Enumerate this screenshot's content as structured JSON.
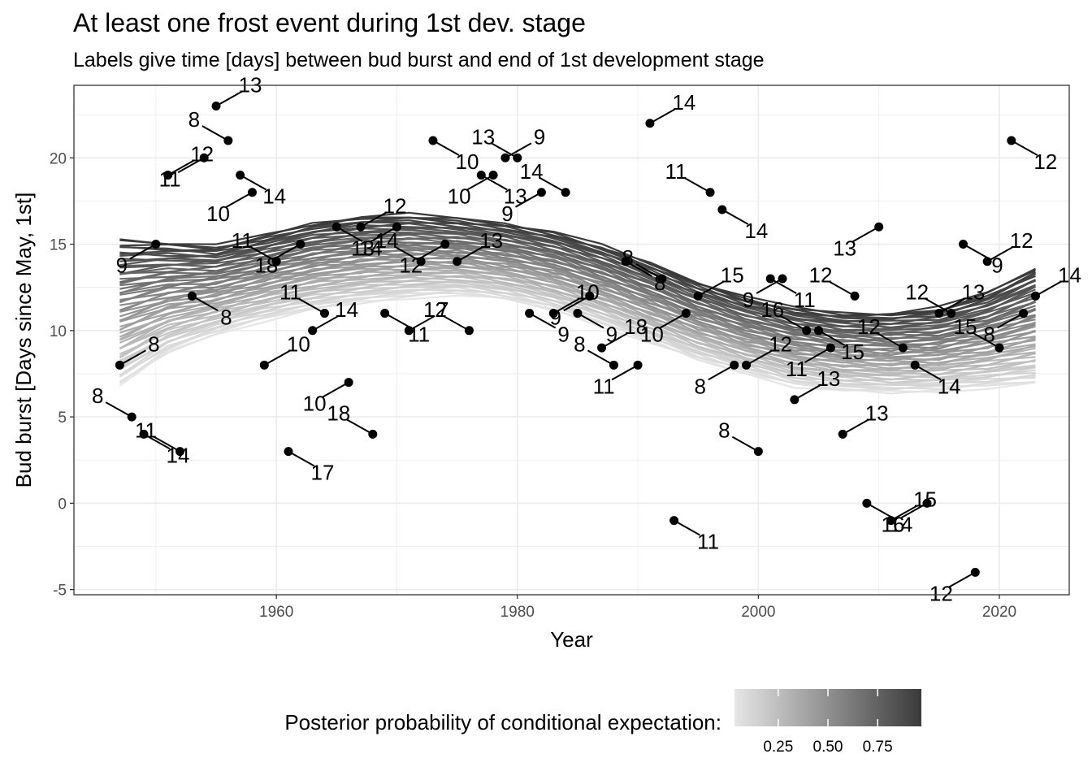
{
  "chart_data": {
    "type": "scatter",
    "title": "At least one frost event during 1st dev. stage",
    "subtitle": "Labels give time [days] between bud burst and end of 1st development stage",
    "xlabel": "Year",
    "ylabel": "Bud burst [Days since May, 1st]",
    "xlim": [
      1943.2,
      2025.8
    ],
    "ylim": [
      -5.3,
      24.2
    ],
    "x_ticks": [
      1960,
      1980,
      2000,
      2020
    ],
    "y_ticks": [
      -5,
      0,
      5,
      10,
      15,
      20
    ],
    "grid": true,
    "legend": {
      "title": "Posterior probability of conditional expectation:",
      "placement": "bottom",
      "ticks": [
        0.25,
        0.5,
        0.75
      ],
      "tick_labels": [
        "0.25",
        "0.50",
        "0.75"
      ],
      "color_low": "#e6e6e6",
      "color_high": "#3a3a3a"
    },
    "curve_band": {
      "x": [
        1947,
        1951,
        1955,
        1959,
        1963,
        1967,
        1971,
        1975,
        1979,
        1983,
        1987,
        1991,
        1995,
        1999,
        2003,
        2007,
        2011,
        2015,
        2019,
        2023
      ],
      "y_upper": [
        15.3,
        15.1,
        14.9,
        15.5,
        16.2,
        16.6,
        16.7,
        16.5,
        16.2,
        15.7,
        14.9,
        13.9,
        12.8,
        11.9,
        11.3,
        11.0,
        11.0,
        11.3,
        12.2,
        13.6
      ],
      "y_lower": [
        6.8,
        8.7,
        9.8,
        10.6,
        11.2,
        11.6,
        11.9,
        12.1,
        11.8,
        11.2,
        10.3,
        9.3,
        8.3,
        7.5,
        6.8,
        6.5,
        6.4,
        6.5,
        6.7,
        6.9
      ]
    },
    "points": [
      {
        "year": 1947,
        "y": 8,
        "label": "8"
      },
      {
        "year": 1948,
        "y": 5,
        "label": "8"
      },
      {
        "year": 1949,
        "y": 4,
        "label": "14"
      },
      {
        "year": 1950,
        "y": 15,
        "label": "9"
      },
      {
        "year": 1951,
        "y": 19,
        "label": "12"
      },
      {
        "year": 1952,
        "y": 3,
        "label": "11"
      },
      {
        "year": 1953,
        "y": 12,
        "label": "8"
      },
      {
        "year": 1954,
        "y": 20,
        "label": "11"
      },
      {
        "year": 1955,
        "y": 23,
        "label": "13"
      },
      {
        "year": 1956,
        "y": 21,
        "label": "8"
      },
      {
        "year": 1957,
        "y": 19,
        "label": "14"
      },
      {
        "year": 1958,
        "y": 18,
        "label": "10"
      },
      {
        "year": 1959,
        "y": 8,
        "label": "10"
      },
      {
        "year": 1960,
        "y": 14,
        "label": "11"
      },
      {
        "year": 1961,
        "y": 3,
        "label": "17"
      },
      {
        "year": 1962,
        "y": 15,
        "label": "18"
      },
      {
        "year": 1963,
        "y": 10,
        "label": "14"
      },
      {
        "year": 1964,
        "y": 11,
        "label": "11"
      },
      {
        "year": 1965,
        "y": 16,
        "label": "14"
      },
      {
        "year": 1966,
        "y": 7,
        "label": "10"
      },
      {
        "year": 1967,
        "y": 16,
        "label": "12"
      },
      {
        "year": 1968,
        "y": 4,
        "label": "18"
      },
      {
        "year": 1969,
        "y": 11,
        "label": "11"
      },
      {
        "year": 1970,
        "y": 16,
        "label": "13"
      },
      {
        "year": 1971,
        "y": 10,
        "label": "7"
      },
      {
        "year": 1972,
        "y": 14,
        "label": "14"
      },
      {
        "year": 1973,
        "y": 21,
        "label": "10"
      },
      {
        "year": 1974,
        "y": 15,
        "label": "12"
      },
      {
        "year": 1975,
        "y": 14,
        "label": "13"
      },
      {
        "year": 1976,
        "y": 10,
        "label": "12"
      },
      {
        "year": 1977,
        "y": 19,
        "label": "13"
      },
      {
        "year": 1978,
        "y": 19,
        "label": "10"
      },
      {
        "year": 1979,
        "y": 20,
        "label": "9"
      },
      {
        "year": 1980,
        "y": 20,
        "label": "13"
      },
      {
        "year": 1981,
        "y": 11,
        "label": "9"
      },
      {
        "year": 1982,
        "y": 18,
        "label": "9"
      },
      {
        "year": 1983,
        "y": 11,
        "label": "10"
      },
      {
        "year": 1984,
        "y": 18,
        "label": "14"
      },
      {
        "year": 1985,
        "y": 11,
        "label": "9"
      },
      {
        "year": 1986,
        "y": 12,
        "label": "9"
      },
      {
        "year": 1987,
        "y": 9,
        "label": "18"
      },
      {
        "year": 1988,
        "y": 8,
        "label": "8"
      },
      {
        "year": 1989,
        "y": 14,
        "label": "8"
      },
      {
        "year": 1990,
        "y": 8,
        "label": "11"
      },
      {
        "year": 1991,
        "y": 22,
        "label": "14"
      },
      {
        "year": 1992,
        "y": 13,
        "label": "8"
      },
      {
        "year": 1993,
        "y": -1,
        "label": "11"
      },
      {
        "year": 1994,
        "y": 11,
        "label": "10"
      },
      {
        "year": 1995,
        "y": 12,
        "label": "15"
      },
      {
        "year": 1996,
        "y": 18,
        "label": "11"
      },
      {
        "year": 1997,
        "y": 17,
        "label": "14"
      },
      {
        "year": 1998,
        "y": 8,
        "label": "8"
      },
      {
        "year": 1999,
        "y": 8,
        "label": "12"
      },
      {
        "year": 2000,
        "y": 3,
        "label": "8"
      },
      {
        "year": 2001,
        "y": 13,
        "label": "11"
      },
      {
        "year": 2002,
        "y": 13,
        "label": "9"
      },
      {
        "year": 2003,
        "y": 6,
        "label": "13"
      },
      {
        "year": 2004,
        "y": 10,
        "label": "16"
      },
      {
        "year": 2005,
        "y": 10,
        "label": "15"
      },
      {
        "year": 2006,
        "y": 9,
        "label": "11"
      },
      {
        "year": 2007,
        "y": 4,
        "label": "13"
      },
      {
        "year": 2008,
        "y": 12,
        "label": "12"
      },
      {
        "year": 2009,
        "y": 0,
        "label": "14"
      },
      {
        "year": 2010,
        "y": 16,
        "label": "13"
      },
      {
        "year": 2011,
        "y": -1,
        "label": "15"
      },
      {
        "year": 2012,
        "y": 9,
        "label": "12"
      },
      {
        "year": 2013,
        "y": 8,
        "label": "14"
      },
      {
        "year": 2014,
        "y": 0,
        "label": "16"
      },
      {
        "year": 2015,
        "y": 11,
        "label": "13"
      },
      {
        "year": 2016,
        "y": 11,
        "label": "12"
      },
      {
        "year": 2017,
        "y": 15,
        "label": "9"
      },
      {
        "year": 2018,
        "y": -4,
        "label": "12"
      },
      {
        "year": 2019,
        "y": 14,
        "label": "12"
      },
      {
        "year": 2020,
        "y": 9,
        "label": "15"
      },
      {
        "year": 2021,
        "y": 21,
        "label": "12"
      },
      {
        "year": 2022,
        "y": 11,
        "label": "8"
      },
      {
        "year": 2023,
        "y": 12,
        "label": "14"
      }
    ]
  }
}
